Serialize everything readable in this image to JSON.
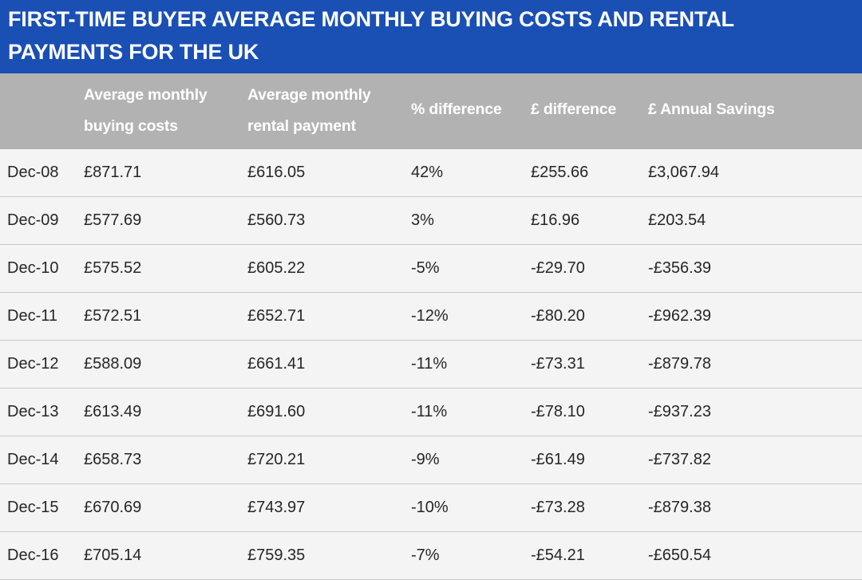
{
  "title": "FIRST-TIME BUYER AVERAGE MONTHLY BUYING COSTS AND RENTAL PAYMENTS FOR THE UK",
  "chart_data": {
    "type": "table",
    "title": "FIRST-TIME BUYER AVERAGE MONTHLY BUYING COSTS AND RENTAL PAYMENTS FOR THE UK",
    "columns": [
      "",
      "Average monthly buying costs",
      "Average monthly rental payment",
      "% difference",
      "£ difference",
      "£ Annual Savings"
    ],
    "rows": [
      [
        "Dec-08",
        "£871.71",
        "£616.05",
        "42%",
        "£255.66",
        "£3,067.94"
      ],
      [
        "Dec-09",
        "£577.69",
        "£560.73",
        "3%",
        "£16.96",
        "£203.54"
      ],
      [
        "Dec-10",
        "£575.52",
        "£605.22",
        "-5%",
        "-£29.70",
        "-£356.39"
      ],
      [
        "Dec-11",
        "£572.51",
        "£652.71",
        "-12%",
        "-£80.20",
        "-£962.39"
      ],
      [
        "Dec-12",
        "£588.09",
        "£661.41",
        "-11%",
        "-£73.31",
        "-£879.78"
      ],
      [
        "Dec-13",
        "£613.49",
        "£691.60",
        "-11%",
        "-£78.10",
        "-£937.23"
      ],
      [
        "Dec-14",
        "£658.73",
        "£720.21",
        "-9%",
        "-£61.49",
        "-£737.82"
      ],
      [
        "Dec-15",
        "£670.69",
        "£743.97",
        "-10%",
        "-£73.28",
        "-£879.38"
      ],
      [
        "Dec-16",
        "£705.14",
        "£759.35",
        "-7%",
        "-£54.21",
        "-£650.54"
      ]
    ]
  },
  "header": {
    "col1_line1": "Average monthly",
    "col1_line2": "buying costs",
    "col2_line1": "Average monthly",
    "col2_line2": "rental payment",
    "col3": "% difference",
    "col4": "£ difference",
    "col5": "£ Annual Savings"
  },
  "colors": {
    "title_bar": "#1a4fb4",
    "header_row": "#b2b2b2",
    "row_background": "#f4f4f4",
    "row_divider": "#c8c8c8",
    "text": "#262626"
  }
}
